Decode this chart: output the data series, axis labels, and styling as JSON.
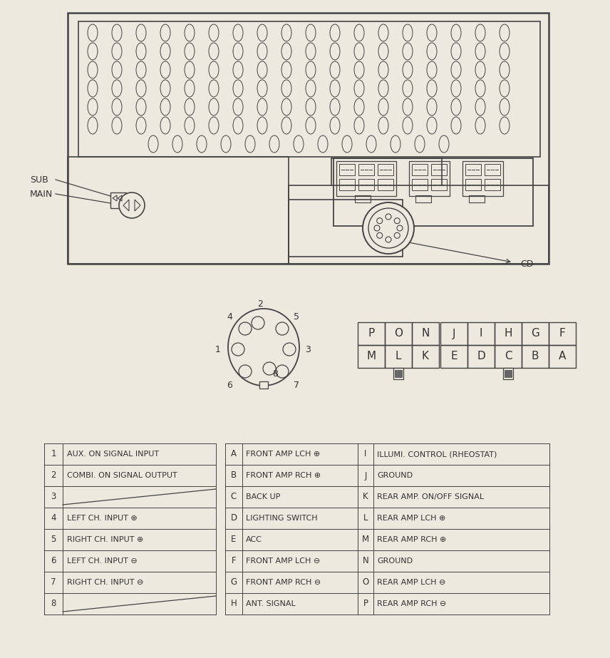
{
  "bg_color": "#ede9de",
  "line_color": "#444444",
  "text_color": "#333333",
  "table1": {
    "rows": [
      [
        "1",
        "AUX. ON SIGNAL INPUT"
      ],
      [
        "2",
        "COMBI. ON SIGNAL OUTPUT"
      ],
      [
        "3",
        ""
      ],
      [
        "4",
        "LEFT CH. INPUT ⊕"
      ],
      [
        "5",
        "RIGHT CH. INPUT ⊕"
      ],
      [
        "6",
        "LEFT CH. INPUT ⊖"
      ],
      [
        "7",
        "RIGHT CH. INPUT ⊖"
      ],
      [
        "8",
        ""
      ]
    ]
  },
  "table2": {
    "rows": [
      [
        "A",
        "FRONT AMP LCH ⊕"
      ],
      [
        "B",
        "FRONT AMP RCH ⊕"
      ],
      [
        "C",
        "BACK UP"
      ],
      [
        "D",
        "LIGHTING SWITCH"
      ],
      [
        "E",
        "ACC"
      ],
      [
        "F",
        "FRONT AMP LCH ⊖"
      ],
      [
        "G",
        "FRONT AMP RCH ⊖"
      ],
      [
        "H",
        "ANT. SIGNAL"
      ]
    ]
  },
  "table3": {
    "rows": [
      [
        "I",
        "ILLUMI. CONTROL (RHEOSTAT)"
      ],
      [
        "J",
        "GROUND"
      ],
      [
        "K",
        "REAR AMP. ON/OFF SIGNAL"
      ],
      [
        "L",
        "REAR AMP LCH ⊕"
      ],
      [
        "M",
        "REAR AMP RCH ⊕"
      ],
      [
        "N",
        "GROUND"
      ],
      [
        "O",
        "REAR AMP LCH ⊖"
      ],
      [
        "P",
        "REAR AMP RCH ⊖"
      ]
    ]
  },
  "connector_grid1": [
    [
      "P",
      "O",
      "N"
    ],
    [
      "M",
      "L",
      "K"
    ]
  ],
  "connector_grid2": [
    [
      "J",
      "I",
      "H",
      "G",
      "F"
    ],
    [
      "E",
      "D",
      "C",
      "B",
      "A"
    ]
  ],
  "figw": 8.56,
  "figh": 9.23,
  "dpi": 100
}
